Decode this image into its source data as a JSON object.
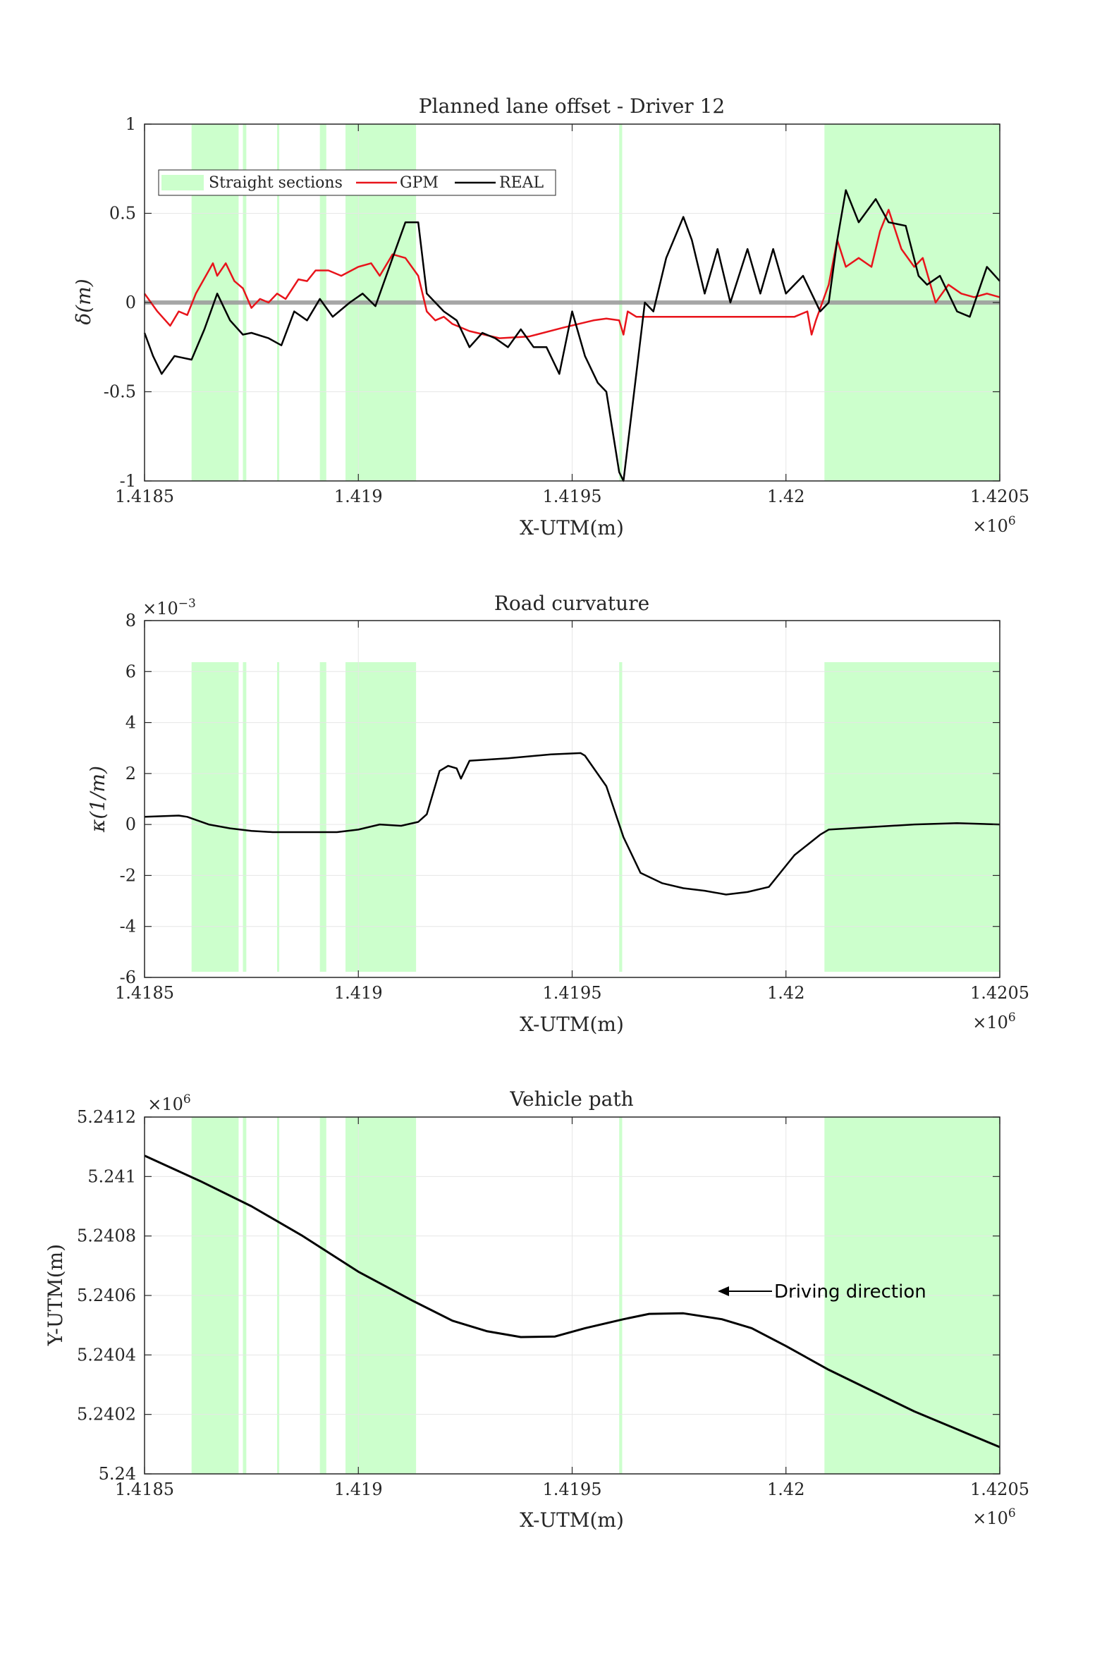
{
  "colors": {
    "straight": "#ccffcc",
    "gpm": "#e8141b",
    "real": "#000000",
    "zero_line": "#999999",
    "grid": "#e6e6e6"
  },
  "chart_data": [
    {
      "type": "line",
      "title": "Planned lane offset - Driver 12",
      "xlabel": "X-UTM(m)",
      "ylabel": "δ(m)",
      "xlim": [
        1.4185,
        1.4205
      ],
      "x_exponent": "×10^6",
      "ylim": [
        -1,
        1
      ],
      "xticks": [
        "1.4185",
        "1.419",
        "1.4195",
        "1.42",
        "1.4205"
      ],
      "yticks": [
        "-1",
        "-0.5",
        "0",
        "0.5",
        "1"
      ],
      "grid": true,
      "legend_position": "top-left",
      "legend": [
        "Straight sections",
        "GPM",
        "REAL"
      ],
      "straight_sections": [
        [
          1.41861,
          1.41872
        ],
        [
          1.41873,
          1.418738
        ],
        [
          1.41881,
          1.418815
        ],
        [
          1.41891,
          1.418925
        ],
        [
          1.41897,
          1.419135
        ],
        [
          1.41961,
          1.419617
        ],
        [
          1.42009,
          1.4205
        ]
      ],
      "series": [
        {
          "name": "GPM",
          "color": "#e8141b",
          "x": [
            1.4185,
            1.41853,
            1.41856,
            1.41858,
            1.4186,
            1.41862,
            1.41866,
            1.41867,
            1.41869,
            1.41871,
            1.41873,
            1.41875,
            1.41877,
            1.41879,
            1.41881,
            1.41883,
            1.41886,
            1.41888,
            1.4189,
            1.41893,
            1.41896,
            1.419,
            1.41903,
            1.41905,
            1.41908,
            1.41911,
            1.41914,
            1.41916,
            1.41918,
            1.4192,
            1.41922,
            1.41926,
            1.41933,
            1.4194,
            1.41948,
            1.41955,
            1.41958,
            1.41961,
            1.41962,
            1.41963,
            1.41965,
            1.41975,
            1.41985,
            1.41995,
            1.42002,
            1.42005,
            1.42006,
            1.42007,
            1.4201,
            1.42012,
            1.42014,
            1.42017,
            1.4202,
            1.42022,
            1.42024,
            1.42027,
            1.4203,
            1.42032,
            1.42035,
            1.42038,
            1.42041,
            1.42044,
            1.42047,
            1.4205
          ],
          "y": [
            0.05,
            -0.05,
            -0.13,
            -0.05,
            -0.07,
            0.05,
            0.22,
            0.15,
            0.22,
            0.12,
            0.08,
            -0.03,
            0.02,
            0.0,
            0.05,
            0.02,
            0.13,
            0.12,
            0.18,
            0.18,
            0.15,
            0.2,
            0.22,
            0.15,
            0.27,
            0.25,
            0.15,
            -0.05,
            -0.1,
            -0.08,
            -0.12,
            -0.16,
            -0.2,
            -0.19,
            -0.14,
            -0.1,
            -0.09,
            -0.1,
            -0.18,
            -0.05,
            -0.08,
            -0.08,
            -0.08,
            -0.08,
            -0.08,
            -0.05,
            -0.18,
            -0.1,
            0.1,
            0.35,
            0.2,
            0.25,
            0.2,
            0.4,
            0.52,
            0.3,
            0.2,
            0.25,
            0.0,
            0.1,
            0.05,
            0.03,
            0.05,
            0.03
          ]
        },
        {
          "name": "REAL",
          "color": "#000000",
          "x": [
            1.4185,
            1.41852,
            1.41854,
            1.41857,
            1.41861,
            1.41864,
            1.41867,
            1.4187,
            1.41873,
            1.41875,
            1.41879,
            1.41882,
            1.41885,
            1.41888,
            1.41891,
            1.41894,
            1.41898,
            1.41901,
            1.41904,
            1.41908,
            1.41911,
            1.41914,
            1.41916,
            1.4192,
            1.41923,
            1.41926,
            1.41929,
            1.41932,
            1.41935,
            1.41938,
            1.41941,
            1.41944,
            1.41947,
            1.4195,
            1.41953,
            1.41956,
            1.41958,
            1.41961,
            1.41962,
            1.41964,
            1.41967,
            1.41969,
            1.41972,
            1.41976,
            1.41978,
            1.41981,
            1.41984,
            1.41987,
            1.41991,
            1.41994,
            1.41997,
            1.42,
            1.42004,
            1.42008,
            1.4201,
            1.42012,
            1.42014,
            1.42017,
            1.42021,
            1.42024,
            1.42028,
            1.42031,
            1.42033,
            1.42036,
            1.4204,
            1.42043,
            1.42047,
            1.4205
          ],
          "y": [
            -0.17,
            -0.3,
            -0.4,
            -0.3,
            -0.32,
            -0.15,
            0.05,
            -0.1,
            -0.18,
            -0.17,
            -0.2,
            -0.24,
            -0.05,
            -0.1,
            0.02,
            -0.08,
            0.0,
            0.05,
            -0.02,
            0.25,
            0.45,
            0.45,
            0.05,
            -0.05,
            -0.1,
            -0.25,
            -0.17,
            -0.2,
            -0.25,
            -0.15,
            -0.25,
            -0.25,
            -0.4,
            -0.05,
            -0.3,
            -0.45,
            -0.5,
            -0.95,
            -1.0,
            -0.6,
            0.0,
            -0.05,
            0.25,
            0.48,
            0.35,
            0.05,
            0.3,
            0.0,
            0.3,
            0.05,
            0.3,
            0.05,
            0.15,
            -0.05,
            0.0,
            0.35,
            0.63,
            0.45,
            0.58,
            0.45,
            0.43,
            0.15,
            0.1,
            0.15,
            -0.05,
            -0.08,
            0.2,
            0.12
          ]
        }
      ]
    },
    {
      "type": "line",
      "title": "Road curvature",
      "xlabel": "X-UTM(m)",
      "ylabel": "κ(1/m)",
      "xlim": [
        1.4185,
        1.4205
      ],
      "x_exponent": "×10^6",
      "y_exponent": "×10^-3",
      "ylim": [
        -6,
        8
      ],
      "xticks": [
        "1.4185",
        "1.419",
        "1.4195",
        "1.42",
        "1.4205"
      ],
      "yticks": [
        "-6",
        "-4",
        "-2",
        "0",
        "2",
        "4",
        "6",
        "8"
      ],
      "grid": true,
      "straight_sections": [
        [
          1.41861,
          1.41872
        ],
        [
          1.41873,
          1.418738
        ],
        [
          1.41881,
          1.418815
        ],
        [
          1.41891,
          1.418925
        ],
        [
          1.41897,
          1.419135
        ],
        [
          1.41961,
          1.419617
        ],
        [
          1.42009,
          1.4205
        ]
      ],
      "series": [
        {
          "name": "",
          "color": "#000000",
          "x": [
            1.4185,
            1.41858,
            1.4186,
            1.41865,
            1.4187,
            1.41875,
            1.4188,
            1.4189,
            1.41895,
            1.419,
            1.41905,
            1.4191,
            1.41914,
            1.41916,
            1.41919,
            1.41921,
            1.41923,
            1.41924,
            1.41926,
            1.41935,
            1.41945,
            1.41952,
            1.41953,
            1.41958,
            1.41962,
            1.41966,
            1.41971,
            1.41976,
            1.41981,
            1.41986,
            1.41991,
            1.41996,
            1.42002,
            1.42008,
            1.4201,
            1.4202,
            1.4203,
            1.4204,
            1.4205
          ],
          "y": [
            0.3,
            0.35,
            0.3,
            0.0,
            -0.15,
            -0.25,
            -0.3,
            -0.3,
            -0.3,
            -0.2,
            0.0,
            -0.05,
            0.1,
            0.4,
            2.1,
            2.3,
            2.2,
            1.8,
            2.5,
            2.6,
            2.75,
            2.8,
            2.7,
            1.5,
            -0.5,
            -1.9,
            -2.3,
            -2.5,
            -2.6,
            -2.75,
            -2.65,
            -2.45,
            -1.2,
            -0.4,
            -0.2,
            -0.1,
            0.0,
            0.05,
            0.0
          ]
        }
      ]
    },
    {
      "type": "line",
      "title": "Vehicle path",
      "xlabel": "X-UTM(m)",
      "ylabel": "Y-UTM(m)",
      "xlim": [
        1.4185,
        1.4205
      ],
      "x_exponent": "×10^6",
      "y_exponent": "×10^6",
      "ylim": [
        5.24,
        5.2412
      ],
      "xticks": [
        "1.4185",
        "1.419",
        "1.4195",
        "1.42",
        "1.4205"
      ],
      "yticks": [
        "5.24",
        "5.2402",
        "5.2404",
        "5.2406",
        "5.2408",
        "5.241",
        "5.2412"
      ],
      "grid": true,
      "annotation": "Driving direction",
      "straight_sections": [
        [
          1.41861,
          1.41872
        ],
        [
          1.41873,
          1.418738
        ],
        [
          1.41881,
          1.418815
        ],
        [
          1.41891,
          1.418925
        ],
        [
          1.41897,
          1.419135
        ],
        [
          1.41961,
          1.419617
        ],
        [
          1.42009,
          1.4205
        ]
      ],
      "series": [
        {
          "name": "",
          "color": "#000000",
          "x": [
            1.4185,
            1.41863,
            1.41875,
            1.41887,
            1.419,
            1.41913,
            1.41922,
            1.4193,
            1.41938,
            1.41946,
            1.41953,
            1.41962,
            1.41968,
            1.41976,
            1.41985,
            1.41992,
            1.42,
            1.4201,
            1.4202,
            1.4203,
            1.4204,
            1.4205
          ],
          "y": [
            5.24107,
            5.240985,
            5.2409,
            5.2408,
            5.24068,
            5.24058,
            5.240515,
            5.24048,
            5.24046,
            5.240462,
            5.24049,
            5.24052,
            5.240538,
            5.24054,
            5.24052,
            5.24049,
            5.24043,
            5.24035,
            5.24028,
            5.24021,
            5.24015,
            5.24009
          ]
        }
      ]
    }
  ]
}
